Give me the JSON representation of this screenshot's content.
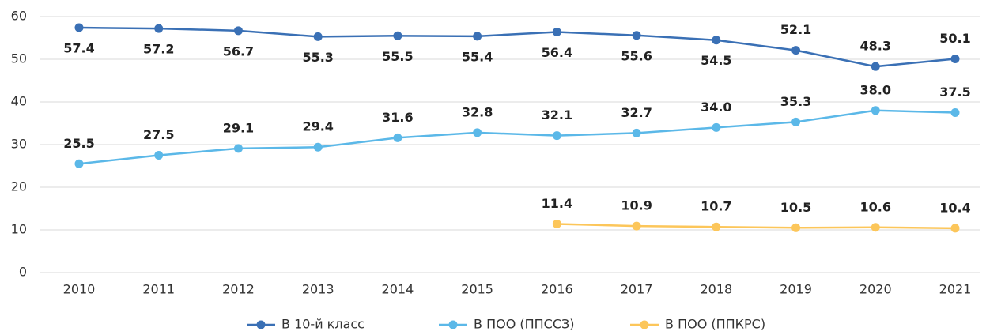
{
  "chart_data": {
    "type": "line",
    "categories": [
      "2010",
      "2011",
      "2012",
      "2013",
      "2014",
      "2015",
      "2016",
      "2017",
      "2018",
      "2019",
      "2020",
      "2021"
    ],
    "series": [
      {
        "name": "В 10-й класс",
        "color": "#3a70b5",
        "values": [
          57.4,
          57.2,
          56.7,
          55.3,
          55.5,
          55.4,
          56.4,
          55.6,
          54.5,
          52.1,
          48.3,
          50.1
        ],
        "value_labels": [
          "57.4",
          "57.2",
          "56.7",
          "55.3",
          "55.5",
          "55.4",
          "56.4",
          "55.6",
          "54.5",
          "52.1",
          "48.3",
          "50.1"
        ]
      },
      {
        "name": "В ПОО (ППССЗ)",
        "color": "#5bb8e8",
        "values": [
          25.5,
          27.5,
          29.1,
          29.4,
          31.6,
          32.8,
          32.1,
          32.7,
          34.0,
          35.3,
          38.0,
          37.5
        ],
        "value_labels": [
          "25.5",
          "27.5",
          "29.1",
          "29.4",
          "31.6",
          "32.8",
          "32.1",
          "32.7",
          "34.0",
          "35.3",
          "38.0",
          "37.5"
        ]
      },
      {
        "name": "В ПОО (ППКРС)",
        "color": "#fcc65a",
        "values": [
          null,
          null,
          null,
          null,
          null,
          null,
          11.4,
          10.9,
          10.7,
          10.5,
          10.6,
          10.4
        ],
        "value_labels": [
          null,
          null,
          null,
          null,
          null,
          null,
          "11.4",
          "10.9",
          "10.7",
          "10.5",
          "10.6",
          "10.4"
        ]
      }
    ],
    "ylim": [
      0,
      60
    ],
    "yticks": [
      0,
      10,
      20,
      30,
      40,
      50,
      60
    ],
    "grid": true,
    "legend": "bottom"
  }
}
